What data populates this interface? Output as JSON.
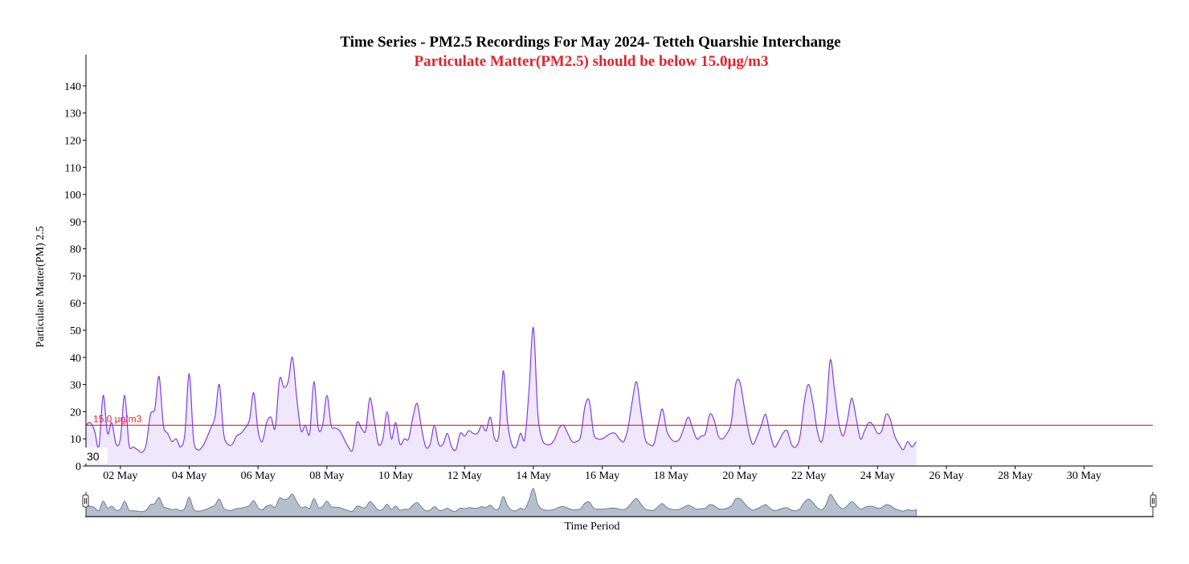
{
  "chart_data": {
    "type": "area",
    "title": "Time Series - PM2.5 Recordings For May 2024- Tetteh Quarshie Interchange",
    "subtitle": "Particulate Matter(PM2.5) should be below 15.0µg/m3",
    "xlabel": "Time Period",
    "ylabel": "Particulate Matter(PM) 2.5",
    "ylim": [
      0,
      145
    ],
    "y_ticks": [
      0,
      10,
      20,
      30,
      40,
      50,
      60,
      70,
      80,
      90,
      100,
      110,
      120,
      130,
      140
    ],
    "x_range": [
      "2024-05-01",
      "2024-06-01"
    ],
    "x_ticks": [
      {
        "date": "2024-05-02",
        "label": "02 May"
      },
      {
        "date": "2024-05-04",
        "label": "04 May"
      },
      {
        "date": "2024-05-06",
        "label": "06 May"
      },
      {
        "date": "2024-05-08",
        "label": "08 May"
      },
      {
        "date": "2024-05-10",
        "label": "10 May"
      },
      {
        "date": "2024-05-12",
        "label": "12 May"
      },
      {
        "date": "2024-05-14",
        "label": "14 May"
      },
      {
        "date": "2024-05-16",
        "label": "16 May"
      },
      {
        "date": "2024-05-18",
        "label": "18 May"
      },
      {
        "date": "2024-05-20",
        "label": "20 May"
      },
      {
        "date": "2024-05-22",
        "label": "22 May"
      },
      {
        "date": "2024-05-24",
        "label": "24 May"
      },
      {
        "date": "2024-05-26",
        "label": "26 May"
      },
      {
        "date": "2024-05-28",
        "label": "28 May"
      },
      {
        "date": "2024-05-30",
        "label": "30 May"
      }
    ],
    "reference_line": {
      "value": 15,
      "label": "15.0 µg/m3",
      "color": "#e8202a"
    },
    "hover_readout": "30",
    "series": [
      {
        "color": "#7b3fe4",
        "fill": "#efe7fd",
        "points": [
          [
            "2024-05-01 00:00",
            15
          ],
          [
            "2024-05-01 03:00",
            16
          ],
          [
            "2024-05-01 06:00",
            13
          ],
          [
            "2024-05-01 09:00",
            7
          ],
          [
            "2024-05-01 12:00",
            26
          ],
          [
            "2024-05-01 15:00",
            12
          ],
          [
            "2024-05-01 18:00",
            16
          ],
          [
            "2024-05-01 21:00",
            8
          ],
          [
            "2024-05-02 00:00",
            10
          ],
          [
            "2024-05-02 03:00",
            26
          ],
          [
            "2024-05-02 06:00",
            8
          ],
          [
            "2024-05-02 09:00",
            7
          ],
          [
            "2024-05-02 12:00",
            6
          ],
          [
            "2024-05-02 15:00",
            5
          ],
          [
            "2024-05-02 18:00",
            8
          ],
          [
            "2024-05-02 21:00",
            19
          ],
          [
            "2024-05-03 00:00",
            21
          ],
          [
            "2024-05-03 03:00",
            33
          ],
          [
            "2024-05-03 06:00",
            15
          ],
          [
            "2024-05-03 09:00",
            12
          ],
          [
            "2024-05-03 12:00",
            9
          ],
          [
            "2024-05-03 15:00",
            10
          ],
          [
            "2024-05-03 18:00",
            7
          ],
          [
            "2024-05-03 21:00",
            12
          ],
          [
            "2024-05-04 00:00",
            34
          ],
          [
            "2024-05-04 03:00",
            10
          ],
          [
            "2024-05-04 06:00",
            6
          ],
          [
            "2024-05-04 09:00",
            7
          ],
          [
            "2024-05-04 12:00",
            10
          ],
          [
            "2024-05-04 15:00",
            14
          ],
          [
            "2024-05-04 18:00",
            18
          ],
          [
            "2024-05-04 21:00",
            30
          ],
          [
            "2024-05-05 00:00",
            12
          ],
          [
            "2024-05-05 03:00",
            8
          ],
          [
            "2024-05-05 06:00",
            8
          ],
          [
            "2024-05-05 09:00",
            11
          ],
          [
            "2024-05-05 12:00",
            12
          ],
          [
            "2024-05-05 15:00",
            14
          ],
          [
            "2024-05-05 18:00",
            17
          ],
          [
            "2024-05-05 21:00",
            27
          ],
          [
            "2024-05-06 00:00",
            13
          ],
          [
            "2024-05-06 03:00",
            9
          ],
          [
            "2024-05-06 06:00",
            16
          ],
          [
            "2024-05-06 09:00",
            18
          ],
          [
            "2024-05-06 12:00",
            14
          ],
          [
            "2024-05-06 15:00",
            32
          ],
          [
            "2024-05-06 18:00",
            29
          ],
          [
            "2024-05-06 21:00",
            31
          ],
          [
            "2024-05-07 00:00",
            40
          ],
          [
            "2024-05-07 03:00",
            25
          ],
          [
            "2024-05-07 06:00",
            13
          ],
          [
            "2024-05-07 09:00",
            15
          ],
          [
            "2024-05-07 12:00",
            12
          ],
          [
            "2024-05-07 15:00",
            31
          ],
          [
            "2024-05-07 18:00",
            14
          ],
          [
            "2024-05-07 21:00",
            15
          ],
          [
            "2024-05-08 00:00",
            26
          ],
          [
            "2024-05-08 03:00",
            15
          ],
          [
            "2024-05-08 06:00",
            14
          ],
          [
            "2024-05-08 09:00",
            13
          ],
          [
            "2024-05-08 12:00",
            10
          ],
          [
            "2024-05-08 15:00",
            7
          ],
          [
            "2024-05-08 18:00",
            6
          ],
          [
            "2024-05-08 21:00",
            16
          ],
          [
            "2024-05-09 00:00",
            14
          ],
          [
            "2024-05-09 03:00",
            13
          ],
          [
            "2024-05-09 06:00",
            25
          ],
          [
            "2024-05-09 09:00",
            17
          ],
          [
            "2024-05-09 12:00",
            8
          ],
          [
            "2024-05-09 15:00",
            10
          ],
          [
            "2024-05-09 18:00",
            20
          ],
          [
            "2024-05-09 21:00",
            10
          ],
          [
            "2024-05-10 00:00",
            16
          ],
          [
            "2024-05-10 03:00",
            8
          ],
          [
            "2024-05-10 06:00",
            10
          ],
          [
            "2024-05-10 09:00",
            10
          ],
          [
            "2024-05-10 12:00",
            18
          ],
          [
            "2024-05-10 15:00",
            23
          ],
          [
            "2024-05-10 18:00",
            14
          ],
          [
            "2024-05-10 21:00",
            7
          ],
          [
            "2024-05-11 00:00",
            8
          ],
          [
            "2024-05-11 03:00",
            15
          ],
          [
            "2024-05-11 06:00",
            8
          ],
          [
            "2024-05-11 09:00",
            8
          ],
          [
            "2024-05-11 12:00",
            12
          ],
          [
            "2024-05-11 15:00",
            7
          ],
          [
            "2024-05-11 18:00",
            6
          ],
          [
            "2024-05-11 21:00",
            12
          ],
          [
            "2024-05-12 00:00",
            11
          ],
          [
            "2024-05-12 03:00",
            13
          ],
          [
            "2024-05-12 06:00",
            12
          ],
          [
            "2024-05-12 09:00",
            12
          ],
          [
            "2024-05-12 12:00",
            15
          ],
          [
            "2024-05-12 15:00",
            13
          ],
          [
            "2024-05-12 18:00",
            18
          ],
          [
            "2024-05-12 21:00",
            10
          ],
          [
            "2024-05-13 00:00",
            12
          ],
          [
            "2024-05-13 03:00",
            35
          ],
          [
            "2024-05-13 06:00",
            16
          ],
          [
            "2024-05-13 09:00",
            8
          ],
          [
            "2024-05-13 12:00",
            7
          ],
          [
            "2024-05-13 15:00",
            12
          ],
          [
            "2024-05-13 18:00",
            10
          ],
          [
            "2024-05-13 21:00",
            28
          ],
          [
            "2024-05-14 00:00",
            51
          ],
          [
            "2024-05-14 03:00",
            20
          ],
          [
            "2024-05-14 06:00",
            10
          ],
          [
            "2024-05-14 09:00",
            8
          ],
          [
            "2024-05-14 12:00",
            8
          ],
          [
            "2024-05-14 15:00",
            10
          ],
          [
            "2024-05-14 18:00",
            14
          ],
          [
            "2024-05-14 21:00",
            15
          ],
          [
            "2024-05-15 00:00",
            12
          ],
          [
            "2024-05-15 03:00",
            9
          ],
          [
            "2024-05-15 06:00",
            9
          ],
          [
            "2024-05-15 09:00",
            11
          ],
          [
            "2024-05-15 12:00",
            22
          ],
          [
            "2024-05-15 15:00",
            24
          ],
          [
            "2024-05-15 18:00",
            12
          ],
          [
            "2024-05-15 21:00",
            10
          ],
          [
            "2024-05-16 00:00",
            10
          ],
          [
            "2024-05-16 03:00",
            11
          ],
          [
            "2024-05-16 06:00",
            12
          ],
          [
            "2024-05-16 09:00",
            12
          ],
          [
            "2024-05-16 12:00",
            10
          ],
          [
            "2024-05-16 15:00",
            9
          ],
          [
            "2024-05-16 18:00",
            14
          ],
          [
            "2024-05-16 21:00",
            24
          ],
          [
            "2024-05-17 00:00",
            31
          ],
          [
            "2024-05-17 03:00",
            20
          ],
          [
            "2024-05-17 06:00",
            10
          ],
          [
            "2024-05-17 09:00",
            8
          ],
          [
            "2024-05-17 12:00",
            8
          ],
          [
            "2024-05-17 15:00",
            15
          ],
          [
            "2024-05-17 18:00",
            21
          ],
          [
            "2024-05-17 21:00",
            13
          ],
          [
            "2024-05-18 00:00",
            10
          ],
          [
            "2024-05-18 03:00",
            9
          ],
          [
            "2024-05-18 06:00",
            10
          ],
          [
            "2024-05-18 09:00",
            14
          ],
          [
            "2024-05-18 12:00",
            18
          ],
          [
            "2024-05-18 15:00",
            14
          ],
          [
            "2024-05-18 18:00",
            10
          ],
          [
            "2024-05-18 21:00",
            11
          ],
          [
            "2024-05-19 00:00",
            12
          ],
          [
            "2024-05-19 03:00",
            19
          ],
          [
            "2024-05-19 06:00",
            17
          ],
          [
            "2024-05-19 09:00",
            11
          ],
          [
            "2024-05-19 12:00",
            10
          ],
          [
            "2024-05-19 15:00",
            12
          ],
          [
            "2024-05-19 18:00",
            16
          ],
          [
            "2024-05-19 21:00",
            30
          ],
          [
            "2024-05-20 00:00",
            31
          ],
          [
            "2024-05-20 03:00",
            22
          ],
          [
            "2024-05-20 06:00",
            13
          ],
          [
            "2024-05-20 09:00",
            8
          ],
          [
            "2024-05-20 12:00",
            11
          ],
          [
            "2024-05-20 15:00",
            15
          ],
          [
            "2024-05-20 18:00",
            19
          ],
          [
            "2024-05-20 21:00",
            12
          ],
          [
            "2024-05-21 00:00",
            7
          ],
          [
            "2024-05-21 03:00",
            9
          ],
          [
            "2024-05-21 06:00",
            12
          ],
          [
            "2024-05-21 09:00",
            13
          ],
          [
            "2024-05-21 12:00",
            8
          ],
          [
            "2024-05-21 15:00",
            7
          ],
          [
            "2024-05-21 18:00",
            11
          ],
          [
            "2024-05-21 21:00",
            24
          ],
          [
            "2024-05-22 00:00",
            30
          ],
          [
            "2024-05-22 03:00",
            23
          ],
          [
            "2024-05-22 06:00",
            13
          ],
          [
            "2024-05-22 09:00",
            9
          ],
          [
            "2024-05-22 12:00",
            18
          ],
          [
            "2024-05-22 15:00",
            39
          ],
          [
            "2024-05-22 18:00",
            28
          ],
          [
            "2024-05-22 21:00",
            16
          ],
          [
            "2024-05-23 00:00",
            11
          ],
          [
            "2024-05-23 03:00",
            17
          ],
          [
            "2024-05-23 06:00",
            25
          ],
          [
            "2024-05-23 09:00",
            18
          ],
          [
            "2024-05-23 12:00",
            10
          ],
          [
            "2024-05-23 15:00",
            13
          ],
          [
            "2024-05-23 18:00",
            16
          ],
          [
            "2024-05-23 21:00",
            15
          ],
          [
            "2024-05-24 00:00",
            12
          ],
          [
            "2024-05-24 03:00",
            13
          ],
          [
            "2024-05-24 06:00",
            19
          ],
          [
            "2024-05-24 09:00",
            17
          ],
          [
            "2024-05-24 12:00",
            11
          ],
          [
            "2024-05-24 15:00",
            8
          ],
          [
            "2024-05-24 18:00",
            6
          ],
          [
            "2024-05-24 21:00",
            9
          ],
          [
            "2024-05-25 00:00",
            7
          ],
          [
            "2024-05-25 03:00",
            9
          ]
        ]
      }
    ]
  }
}
